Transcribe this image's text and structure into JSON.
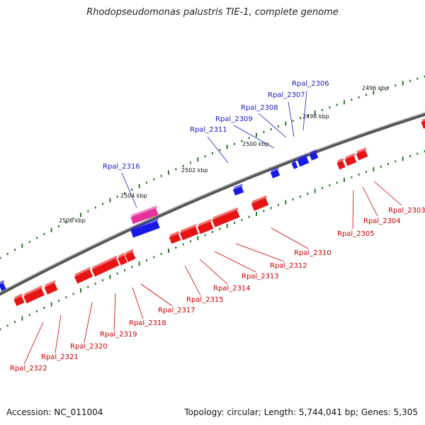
{
  "title": "Rhodopseudomonas palustris TIE-1, complete genome",
  "footer": {
    "accession": "Accession: NC_011004",
    "topology": "Topology: circular; Length: 5,744,041 bp; Genes: 5,305"
  },
  "colors": {
    "forward_gene": "#1a1ae6",
    "reverse_gene": "#e61414",
    "highlight_gene": "#e6329c",
    "backbone": "#7a7a7a",
    "tick": "#2a7a2a",
    "label_forward": "#1a1ac8",
    "label_reverse": "#c80000"
  },
  "kbp_labels": [
    "2496 kbp",
    "2498 kbp",
    "2500 kbp",
    "2502 kbp",
    "2504 kbp",
    "2506 kbp"
  ],
  "forward_labels": [
    "Rpal_2306",
    "Rpal_2307",
    "Rpal_2308",
    "Rpal_2309",
    "Rpal_2311",
    "Rpal_2316"
  ],
  "reverse_labels": [
    "Rpal_2303",
    "Rpal_2304",
    "Rpal_2305",
    "Rpal_2310",
    "Rpal_2312",
    "Rpal_2313",
    "Rpal_2314",
    "Rpal_2315",
    "Rpal_2317",
    "Rpal_2318",
    "Rpal_2319",
    "Rpal_2320",
    "Rpal_2321",
    "Rpal_2322"
  ]
}
